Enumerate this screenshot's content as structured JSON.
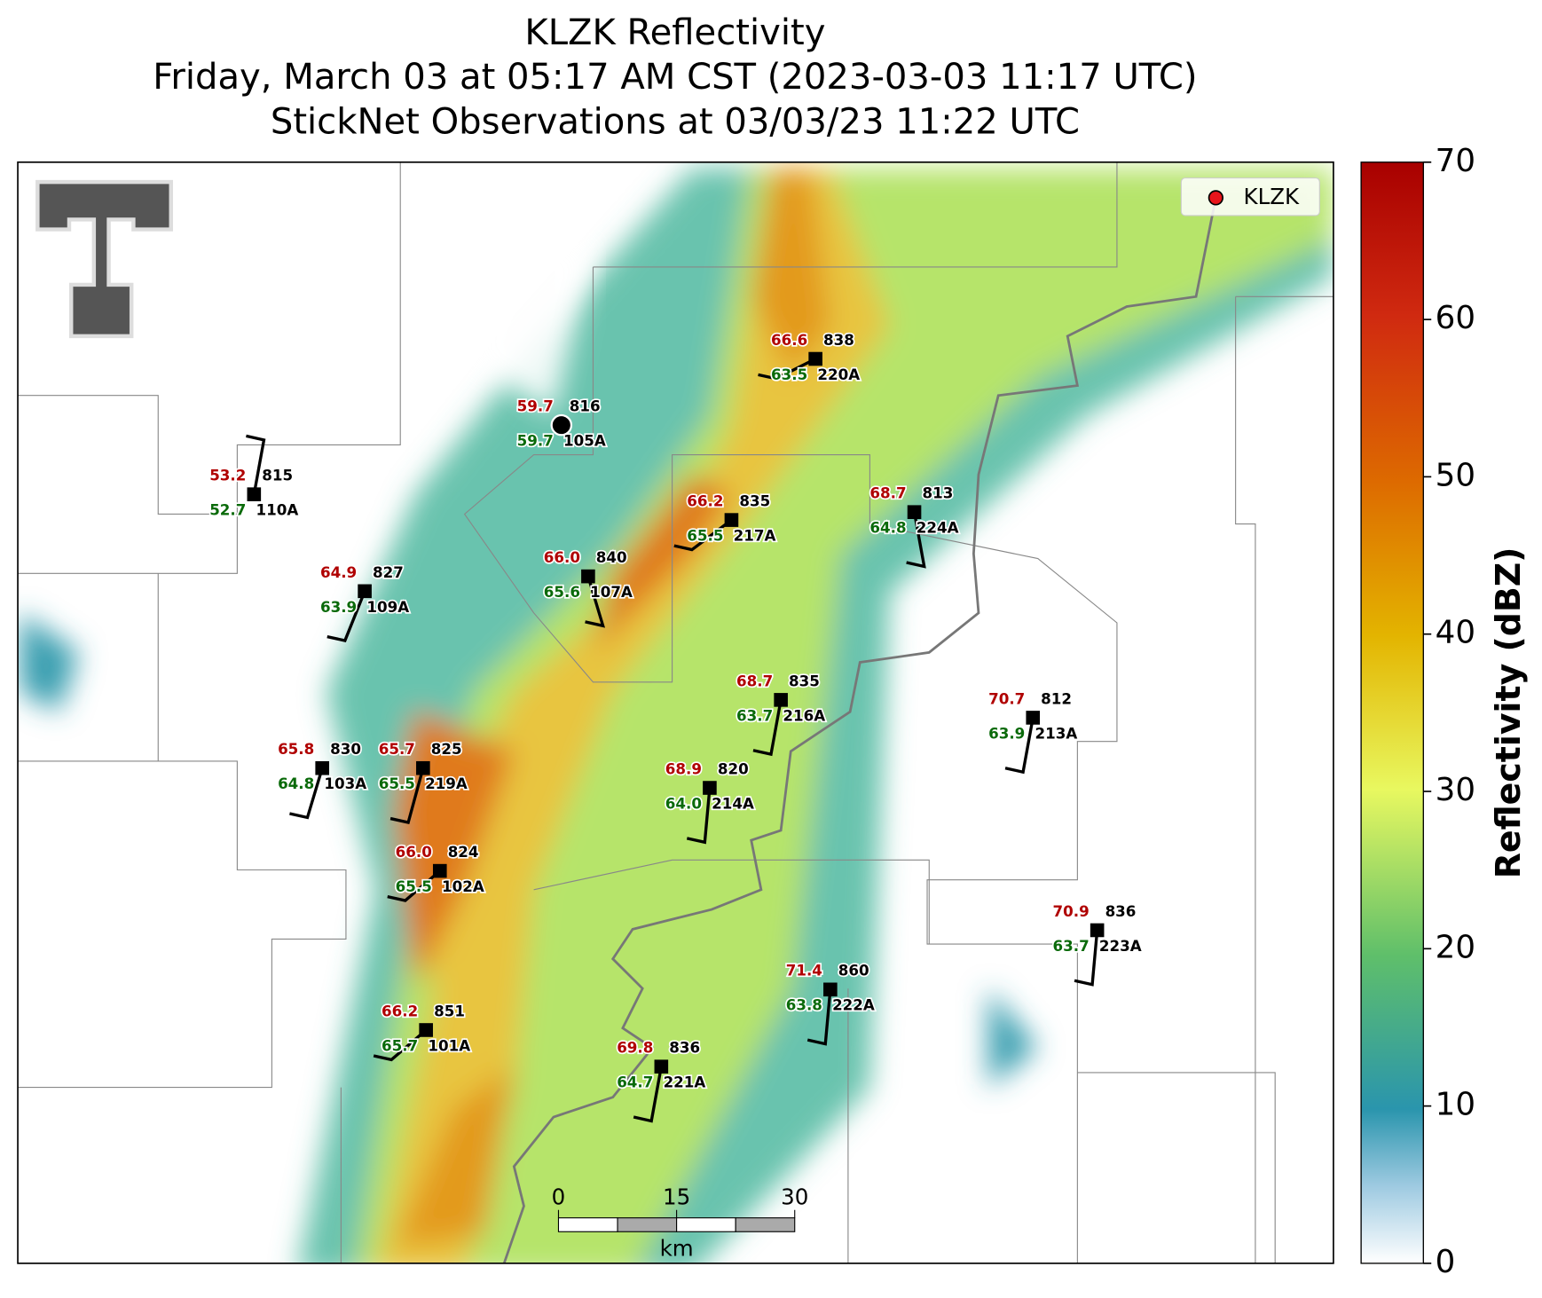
{
  "title": [
    "KLZK Reflectivity",
    "Friday, March 03 at 05:17 AM CST (2023-03-03 11:17 UTC)",
    "StickNet Observations at 03/03/23 11:22 UTC"
  ],
  "legend": {
    "label": "KLZK",
    "color": "#e8141b"
  },
  "colorbar": {
    "label": "Reflectivity (dBZ)",
    "lim": [
      0,
      70
    ],
    "ticks": [
      0,
      10,
      20,
      30,
      40,
      50,
      60,
      70
    ]
  },
  "scale_bar": {
    "lim": [
      0,
      30
    ],
    "ticks": [
      0,
      15,
      30
    ],
    "unit": "km"
  },
  "stations": [
    {
      "temperature": "59.7",
      "dewpoint": "59.7",
      "pressure": "816",
      "id": "105A"
    },
    {
      "temperature": "66.6",
      "dewpoint": "63.5",
      "pressure": "838",
      "id": "220A"
    },
    {
      "temperature": "53.2",
      "dewpoint": "52.7",
      "pressure": "815",
      "id": "110A"
    },
    {
      "temperature": "66.2",
      "dewpoint": "65.5",
      "pressure": "835",
      "id": "217A"
    },
    {
      "temperature": "68.7",
      "dewpoint": "64.8",
      "pressure": "813",
      "id": "224A"
    },
    {
      "temperature": "66.0",
      "dewpoint": "65.6",
      "pressure": "840",
      "id": "107A"
    },
    {
      "temperature": "64.9",
      "dewpoint": "63.9",
      "pressure": "827",
      "id": "109A"
    },
    {
      "temperature": "68.7",
      "dewpoint": "63.7",
      "pressure": "835",
      "id": "216A"
    },
    {
      "temperature": "70.7",
      "dewpoint": "63.9",
      "pressure": "812",
      "id": "213A"
    },
    {
      "temperature": "65.8",
      "dewpoint": "64.8",
      "pressure": "830",
      "id": "103A"
    },
    {
      "temperature": "65.7",
      "dewpoint": "65.5",
      "pressure": "825",
      "id": "219A"
    },
    {
      "temperature": "68.9",
      "dewpoint": "64.0",
      "pressure": "820",
      "id": "214A"
    },
    {
      "temperature": "66.0",
      "dewpoint": "65.5",
      "pressure": "824",
      "id": "102A"
    },
    {
      "temperature": "70.9",
      "dewpoint": "63.7",
      "pressure": "836",
      "id": "223A"
    },
    {
      "temperature": "71.4",
      "dewpoint": "63.8",
      "pressure": "860",
      "id": "222A"
    },
    {
      "temperature": "66.2",
      "dewpoint": "65.7",
      "pressure": "851",
      "id": "101A"
    },
    {
      "temperature": "69.8",
      "dewpoint": "64.7",
      "pressure": "836",
      "id": "221A"
    }
  ]
}
